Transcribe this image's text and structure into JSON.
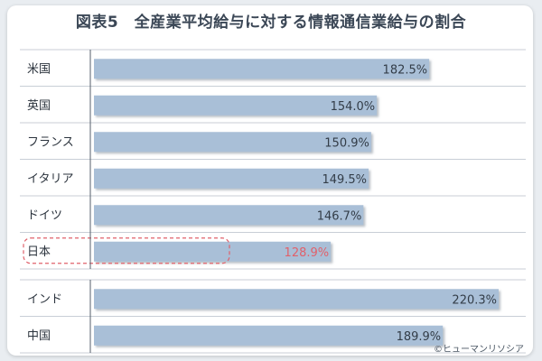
{
  "chart_data": {
    "type": "bar",
    "orientation": "horizontal",
    "title": "図表5　全産業平均給与に対する情報通信業給与の割合",
    "groups": [
      {
        "categories": [
          "米国",
          "英国",
          "フランス",
          "イタリア",
          "ドイツ",
          "日本"
        ],
        "values": [
          182.5,
          154.0,
          150.9,
          149.5,
          146.7,
          128.9
        ],
        "labels": [
          "182.5%",
          "154.0%",
          "150.9%",
          "149.5%",
          "146.7%",
          "128.9%"
        ]
      },
      {
        "categories": [
          "インド",
          "中国"
        ],
        "values": [
          220.3,
          189.9
        ],
        "labels": [
          "220.3%",
          "189.9%"
        ]
      }
    ],
    "unit": "%",
    "xlim": [
      0,
      230
    ],
    "highlight": "日本",
    "colors": {
      "bar": "#a9bfd7",
      "label": "#333d48",
      "highlight_label": "#e0616b",
      "highlight_border": "#e0616b",
      "grid": "#c8ced6"
    }
  },
  "footer": {
    "credit": "©ヒューマンリソシア"
  }
}
